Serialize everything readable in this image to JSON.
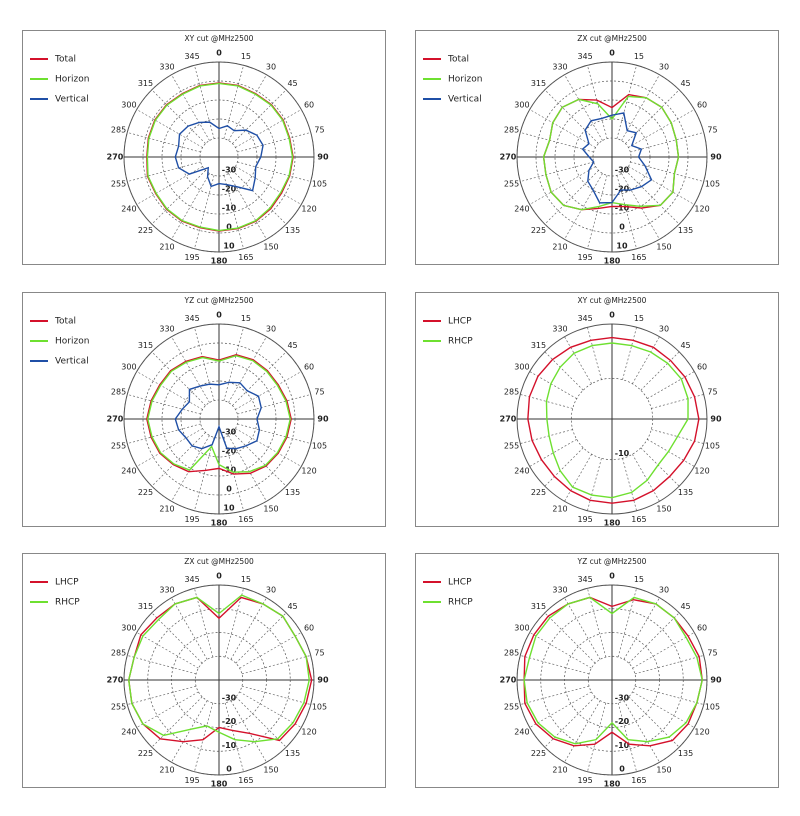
{
  "chart_data": [
    {
      "type": "polar",
      "title": "XY cut @MHz2500",
      "legend": "upper left",
      "theta": [
        0,
        15,
        30,
        45,
        60,
        75,
        90,
        105,
        120,
        135,
        150,
        165,
        180,
        195,
        210,
        225,
        240,
        255,
        270,
        285,
        300,
        315,
        330,
        345
      ],
      "thetaticks": [
        0,
        15,
        30,
        45,
        60,
        75,
        90,
        105,
        120,
        135,
        150,
        165,
        180,
        195,
        210,
        225,
        240,
        255,
        270,
        285,
        300,
        315,
        330,
        345
      ],
      "rlim": [
        -40,
        10
      ],
      "rticks": [
        -30,
        -20,
        -10,
        0,
        10
      ],
      "series": [
        {
          "name": "Total",
          "color": "#d4112b",
          "values": [
            -1,
            -1,
            -1.5,
            -1,
            -1,
            -1.5,
            -1,
            -1.5,
            -2,
            -1.5,
            -1,
            -1,
            -1,
            -1.5,
            -1,
            -1,
            -1.5,
            -1,
            -2,
            -1.5,
            -1,
            -1,
            -1.5,
            -1
          ]
        },
        {
          "name": "Horizon",
          "color": "#6ee030",
          "values": [
            -1.3,
            -1.3,
            -1.8,
            -1.3,
            -1.3,
            -1.8,
            -1.3,
            -1.8,
            -2.5,
            -2,
            -1.3,
            -1.3,
            -1.3,
            -1.8,
            -1.3,
            -1.3,
            -1.8,
            -1.3,
            -2.3,
            -1.8,
            -1.3,
            -1.3,
            -1.8,
            -1.3
          ]
        },
        {
          "name": "Vertical",
          "color": "#1f4fa6",
          "values": [
            -25,
            -23,
            -24,
            -20,
            -17,
            -16,
            -18,
            -20,
            -18,
            -15,
            -22,
            -25,
            -26,
            -24,
            -28,
            -32,
            -22,
            -18,
            -17,
            -18,
            -16,
            -17,
            -19,
            -21
          ]
        }
      ]
    },
    {
      "type": "polar",
      "title": "ZX cut @MHz2500",
      "legend": "upper left",
      "theta": [
        0,
        15,
        30,
        45,
        60,
        75,
        90,
        105,
        120,
        135,
        150,
        165,
        180,
        195,
        210,
        225,
        240,
        255,
        270,
        285,
        300,
        315,
        330,
        345
      ],
      "thetaticks": [
        0,
        15,
        30,
        45,
        60,
        75,
        90,
        105,
        120,
        135,
        150,
        165,
        180,
        195,
        210,
        225,
        240,
        255,
        270,
        285,
        300,
        315,
        330,
        345
      ],
      "rlim": [
        -40,
        10
      ],
      "rticks": [
        -30,
        -20,
        -10,
        0,
        10
      ],
      "series": [
        {
          "name": "Total",
          "color": "#d4112b",
          "values": [
            -14,
            -6,
            -4,
            -3,
            -4,
            -5,
            -5,
            -6,
            -3,
            -4,
            -9,
            -13,
            -14,
            -12,
            -8,
            -4,
            -3,
            -4,
            -4,
            -6,
            -4,
            -3,
            -5,
            -9
          ]
        },
        {
          "name": "Horizon",
          "color": "#6ee030",
          "values": [
            -20,
            -7,
            -4,
            -3,
            -4,
            -5,
            -5,
            -6,
            -3,
            -4,
            -10,
            -14,
            -16,
            -13,
            -8,
            -4,
            -3,
            -4,
            -4,
            -6,
            -4,
            -3,
            -5,
            -11
          ]
        },
        {
          "name": "Vertical",
          "color": "#1f4fa6",
          "values": [
            -18,
            -16,
            -24,
            -22,
            -28,
            -24,
            -26,
            -22,
            -16,
            -18,
            -20,
            -22,
            -16,
            -15,
            -20,
            -22,
            -26,
            -30,
            -28,
            -24,
            -26,
            -20,
            -18,
            -19
          ]
        }
      ]
    },
    {
      "type": "polar",
      "title": "YZ cut @MHz2500",
      "legend": "upper left",
      "theta": [
        0,
        15,
        30,
        45,
        60,
        75,
        90,
        105,
        120,
        135,
        150,
        165,
        180,
        195,
        210,
        225,
        240,
        255,
        270,
        285,
        300,
        315,
        330,
        345
      ],
      "thetaticks": [
        0,
        15,
        30,
        45,
        60,
        75,
        90,
        105,
        120,
        135,
        150,
        165,
        180,
        195,
        210,
        225,
        240,
        255,
        270,
        285,
        300,
        315,
        330,
        345
      ],
      "rlim": [
        -40,
        10
      ],
      "rticks": [
        -30,
        -20,
        -10,
        0,
        10
      ],
      "series": [
        {
          "name": "Total",
          "color": "#d4112b",
          "values": [
            -9,
            -5,
            -4,
            -4,
            -4,
            -3,
            -2,
            -3,
            -4,
            -5,
            -7,
            -10,
            -14,
            -12,
            -8,
            -6,
            -4,
            -3,
            -2,
            -3,
            -4,
            -4,
            -5,
            -6
          ]
        },
        {
          "name": "Horizon",
          "color": "#6ee030",
          "values": [
            -9.5,
            -5.5,
            -4.5,
            -4.5,
            -4.5,
            -3.5,
            -2.5,
            -3.5,
            -4.5,
            -5.5,
            -8,
            -11,
            -16,
            -25,
            -9,
            -6.5,
            -4.5,
            -3.5,
            -2.5,
            -3.5,
            -4.5,
            -4.5,
            -5.5,
            -6.5
          ]
        },
        {
          "name": "Vertical",
          "color": "#1f4fa6",
          "values": [
            -22,
            -20,
            -18,
            -19,
            -16,
            -17,
            -20,
            -18,
            -17,
            -20,
            -22,
            -24,
            -36,
            -26,
            -22,
            -20,
            -20,
            -18,
            -17,
            -20,
            -22,
            -18,
            -20,
            -21
          ]
        }
      ]
    },
    {
      "type": "polar",
      "title": "XY cut @MHz2500",
      "legend": "upper left",
      "theta": [
        0,
        15,
        30,
        45,
        60,
        75,
        90,
        105,
        120,
        135,
        150,
        165,
        180,
        195,
        210,
        225,
        240,
        255,
        270,
        285,
        300,
        315,
        330,
        345
      ],
      "thetaticks": [
        0,
        15,
        30,
        45,
        60,
        75,
        90,
        105,
        120,
        135,
        150,
        165,
        180,
        195,
        210,
        225,
        240,
        255,
        270,
        285,
        300,
        315,
        330,
        345
      ],
      "rlim": [
        -25,
        10
      ],
      "rticks": [
        -10
      ],
      "series": [
        {
          "name": "LHCP",
          "color": "#d4112b",
          "values": [
            5,
            5,
            5.5,
            5.5,
            6,
            6.5,
            7,
            6.5,
            5.5,
            5,
            5.5,
            6,
            6,
            6,
            5.5,
            5,
            5,
            5.5,
            6,
            6.5,
            6.5,
            6,
            5.5,
            5
          ]
        },
        {
          "name": "RHCP",
          "color": "#6ee030",
          "values": [
            3,
            3,
            3.5,
            4,
            4.5,
            4,
            3,
            0,
            -1,
            -1,
            1,
            3,
            4,
            4,
            4,
            2,
            0,
            -1,
            -1,
            0,
            1,
            2,
            3,
            3
          ]
        }
      ]
    },
    {
      "type": "polar",
      "title": "ZX cut @MHz2500",
      "legend": "upper left",
      "theta": [
        0,
        15,
        30,
        45,
        60,
        75,
        90,
        105,
        120,
        135,
        150,
        165,
        180,
        195,
        210,
        225,
        240,
        255,
        270,
        285,
        300,
        315,
        330,
        345
      ],
      "thetaticks": [
        0,
        15,
        30,
        45,
        60,
        75,
        90,
        105,
        120,
        135,
        150,
        165,
        180,
        195,
        210,
        225,
        240,
        255,
        270,
        285,
        300,
        315,
        330,
        345
      ],
      "rlim": [
        -40,
        0
      ],
      "rticks": [
        -30,
        -20,
        -10,
        0
      ],
      "series": [
        {
          "name": "LHCP",
          "color": "#d4112b",
          "values": [
            -14,
            -4,
            -3,
            -2,
            -3,
            -2,
            -1,
            -2,
            -3,
            -4,
            -14,
            -18,
            -20,
            -14,
            -10,
            -5,
            -3,
            -2,
            -2,
            -3,
            -2,
            -3,
            -3,
            -4
          ]
        },
        {
          "name": "RHCP",
          "color": "#6ee030",
          "values": [
            -12,
            -3,
            -3,
            -2,
            -3,
            -2,
            -2,
            -3,
            -4,
            -5,
            -10,
            -14,
            -18,
            -20,
            -16,
            -7,
            -3,
            -2,
            -2,
            -3,
            -3,
            -4,
            -3,
            -4
          ]
        }
      ]
    },
    {
      "type": "polar",
      "title": "YZ cut @MHz2500",
      "legend": "upper left",
      "theta": [
        0,
        15,
        30,
        45,
        60,
        75,
        90,
        105,
        120,
        135,
        150,
        165,
        180,
        195,
        210,
        225,
        240,
        255,
        270,
        285,
        300,
        315,
        330,
        345
      ],
      "thetaticks": [
        0,
        15,
        30,
        45,
        60,
        75,
        90,
        105,
        120,
        135,
        150,
        165,
        180,
        195,
        210,
        225,
        240,
        255,
        270,
        285,
        300,
        315,
        330,
        345
      ],
      "rlim": [
        -40,
        0
      ],
      "rticks": [
        -30,
        -20,
        -10,
        0
      ],
      "series": [
        {
          "name": "LHCP",
          "color": "#d4112b",
          "values": [
            -9,
            -5,
            -3,
            -3,
            -3,
            -2,
            -2,
            -3,
            -3,
            -4,
            -8,
            -12,
            -18,
            -12,
            -8,
            -5,
            -3,
            -2,
            -3,
            -2,
            -2,
            -2,
            -3,
            -4
          ]
        },
        {
          "name": "RHCP",
          "color": "#6ee030",
          "values": [
            -12,
            -4,
            -3,
            -3,
            -4,
            -3,
            -2,
            -3,
            -4,
            -6,
            -10,
            -14,
            -22,
            -14,
            -9,
            -6,
            -4,
            -3,
            -3,
            -4,
            -3,
            -3,
            -3,
            -4
          ]
        }
      ]
    }
  ]
}
